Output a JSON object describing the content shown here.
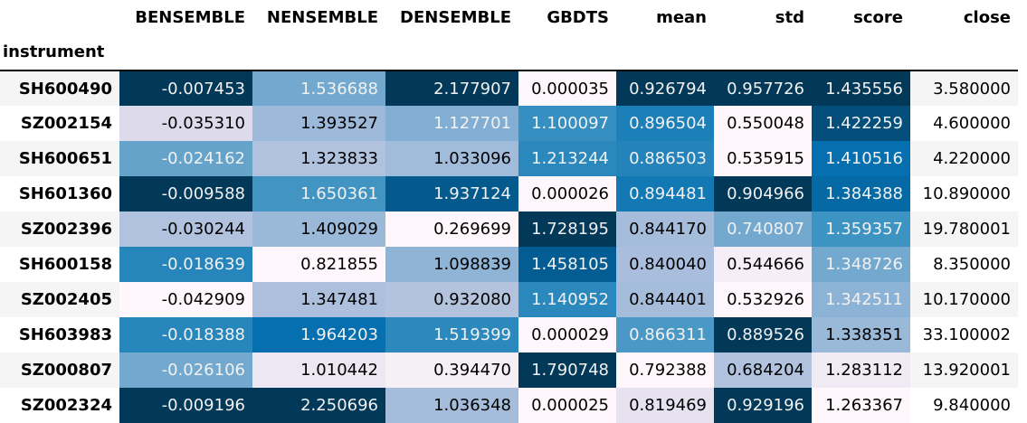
{
  "table": {
    "index_name": "instrument",
    "columns": [
      "BENSEMBLE",
      "NENSEMBLE",
      "DENSEMBLE",
      "GBDTS",
      "mean",
      "std",
      "score",
      "close"
    ],
    "rows": [
      {
        "instrument": "SH600490",
        "values": [
          "-0.007453",
          "1.536688",
          "2.177907",
          "0.000035",
          "0.926794",
          "0.957726",
          "1.435556",
          "3.580000"
        ]
      },
      {
        "instrument": "SZ002154",
        "values": [
          "-0.035310",
          "1.393527",
          "1.127701",
          "1.100097",
          "0.896504",
          "0.550048",
          "1.422259",
          "4.600000"
        ]
      },
      {
        "instrument": "SH600651",
        "values": [
          "-0.024162",
          "1.323833",
          "1.033096",
          "1.213244",
          "0.886503",
          "0.535915",
          "1.410516",
          "4.220000"
        ]
      },
      {
        "instrument": "SH601360",
        "values": [
          "-0.009588",
          "1.650361",
          "1.937124",
          "0.000026",
          "0.894481",
          "0.904966",
          "1.384388",
          "10.890000"
        ]
      },
      {
        "instrument": "SZ002396",
        "values": [
          "-0.030244",
          "1.409029",
          "0.269699",
          "1.728195",
          "0.844170",
          "0.740807",
          "1.359357",
          "19.780001"
        ]
      },
      {
        "instrument": "SH600158",
        "values": [
          "-0.018639",
          "0.821855",
          "1.098839",
          "1.458105",
          "0.840040",
          "0.544666",
          "1.348726",
          "8.350000"
        ]
      },
      {
        "instrument": "SZ002405",
        "values": [
          "-0.042909",
          "1.347481",
          "0.932080",
          "1.140952",
          "0.844401",
          "0.532926",
          "1.342511",
          "10.170000"
        ]
      },
      {
        "instrument": "SH603983",
        "values": [
          "-0.018388",
          "1.964203",
          "1.519399",
          "0.000029",
          "0.866311",
          "0.889526",
          "1.338351",
          "33.100002"
        ]
      },
      {
        "instrument": "SZ000807",
        "values": [
          "-0.026106",
          "1.010442",
          "0.394470",
          "1.790748",
          "0.792388",
          "0.684204",
          "1.283112",
          "13.920001"
        ]
      },
      {
        "instrument": "SZ002324",
        "values": [
          "-0.009196",
          "2.250696",
          "1.036348",
          "0.000025",
          "0.819469",
          "0.929196",
          "1.263367",
          "9.840000"
        ]
      }
    ],
    "cell_colors": [
      [
        "#023858",
        "#73a9cf",
        "#023858",
        "#fff7fb",
        "#023858",
        "#023858",
        "#023858"
      ],
      [
        "#dcdaeb",
        "#9cb9d9",
        "#81aed2",
        "#368fc0",
        "#1c7fb8",
        "#fff7fb",
        "#034e7b"
      ],
      [
        "#65a3cb",
        "#b0c2de",
        "#a1bbda",
        "#2a88bc",
        "#2383ba",
        "#fff7fb",
        "#056faf"
      ],
      [
        "#023858",
        "#4295c3",
        "#045a8d",
        "#fff7fb",
        "#1379b5",
        "#023858",
        "#0569a5"
      ],
      [
        "#b0c2de",
        "#9ab8d8",
        "#fff7fb",
        "#023858",
        "#a5bddb",
        "#73a9cf",
        "#3d93c2"
      ],
      [
        "#2685bb",
        "#fff7fb",
        "#8fb4d6",
        "#045d92",
        "#a8bedc",
        "#f5eef6",
        "#73a9cf"
      ],
      [
        "#fff7fb",
        "#acc0dd",
        "#b3c3de",
        "#2a88bc",
        "#a5bddb",
        "#fff7fb",
        "#8cb3d5"
      ],
      [
        "#2786bb",
        "#056faf",
        "#2c89bd",
        "#fff7fb",
        "#4a98c5",
        "#023858",
        "#9ab8d8"
      ],
      [
        "#73a9cf",
        "#ece7f2",
        "#f5eff6",
        "#023858",
        "#fff7fb",
        "#b0c2de",
        "#f0eaf4"
      ],
      [
        "#023858",
        "#023858",
        "#a5bddb",
        "#fff7fb",
        "#e6e2ef",
        "#023858",
        "#fff7fb"
      ]
    ],
    "text_colors": [
      [
        "#f1f1f1",
        "#f1f1f1",
        "#f1f1f1",
        "#000000",
        "#f1f1f1",
        "#f1f1f1",
        "#f1f1f1"
      ],
      [
        "#000000",
        "#000000",
        "#f1f1f1",
        "#f1f1f1",
        "#f1f1f1",
        "#000000",
        "#f1f1f1"
      ],
      [
        "#f1f1f1",
        "#000000",
        "#000000",
        "#f1f1f1",
        "#f1f1f1",
        "#000000",
        "#f1f1f1"
      ],
      [
        "#f1f1f1",
        "#f1f1f1",
        "#f1f1f1",
        "#000000",
        "#f1f1f1",
        "#f1f1f1",
        "#f1f1f1"
      ],
      [
        "#000000",
        "#000000",
        "#000000",
        "#f1f1f1",
        "#000000",
        "#f1f1f1",
        "#f1f1f1"
      ],
      [
        "#f1f1f1",
        "#000000",
        "#000000",
        "#f1f1f1",
        "#000000",
        "#000000",
        "#f1f1f1"
      ],
      [
        "#000000",
        "#000000",
        "#000000",
        "#f1f1f1",
        "#000000",
        "#000000",
        "#f1f1f1"
      ],
      [
        "#f1f1f1",
        "#f1f1f1",
        "#f1f1f1",
        "#000000",
        "#f1f1f1",
        "#f1f1f1",
        "#000000"
      ],
      [
        "#f1f1f1",
        "#000000",
        "#000000",
        "#f1f1f1",
        "#000000",
        "#000000",
        "#000000"
      ],
      [
        "#f1f1f1",
        "#f1f1f1",
        "#000000",
        "#000000",
        "#000000",
        "#f1f1f1",
        "#000000"
      ]
    ]
  }
}
